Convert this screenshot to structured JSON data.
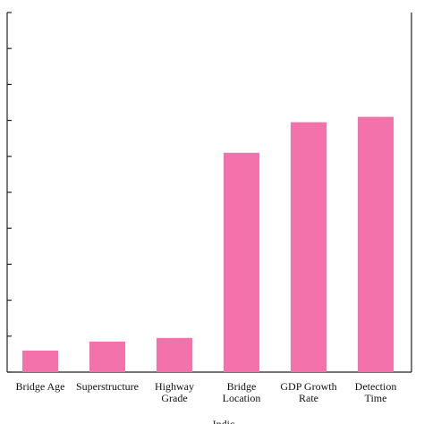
{
  "chart_data": {
    "type": "bar",
    "categories": [
      [
        "Bridge Age"
      ],
      [
        "Superstructure"
      ],
      [
        "Highway",
        "Grade"
      ],
      [
        "Bridge",
        "Location"
      ],
      [
        "GDP Growth",
        "Rate"
      ],
      [
        "Detection",
        "Time"
      ]
    ],
    "values": [
      6,
      8.5,
      9.5,
      61,
      69.5,
      71
    ],
    "ylim": [
      0,
      100
    ],
    "yticks": [
      0,
      10,
      20,
      30,
      40,
      50,
      60,
      70,
      80,
      90,
      100
    ],
    "xlabel": "Indic",
    "ylabel": "",
    "title": "",
    "grid": false,
    "colors": {
      "bar": "#f472ac",
      "axis": "#222222"
    }
  }
}
